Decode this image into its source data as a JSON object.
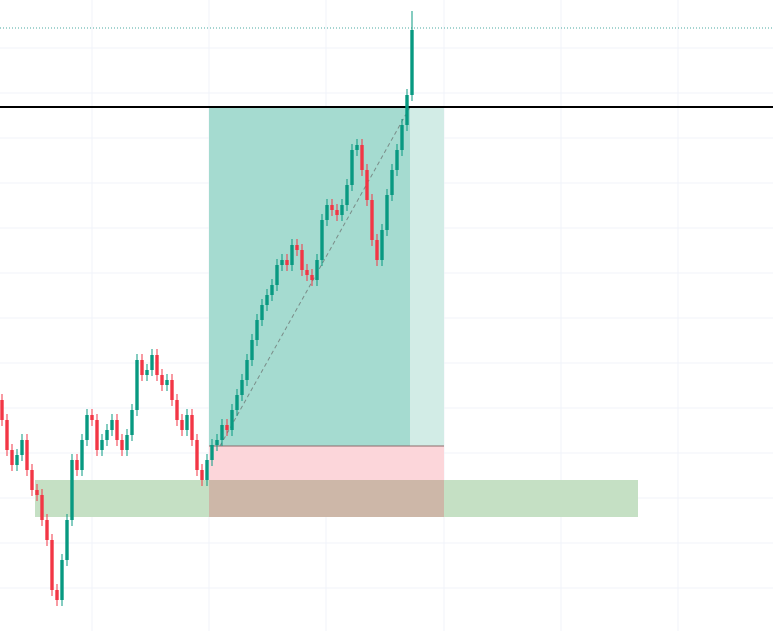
{
  "chart_data": {
    "type": "candlestick",
    "up_color": "#089981",
    "down_color": "#f23645",
    "ylim": [
      0,
      631
    ],
    "open": [
      231,
      211,
      181,
      166,
      176,
      191,
      161,
      141,
      136,
      111,
      91,
      41,
      31,
      71,
      111,
      171,
      161,
      191,
      216,
      211,
      181,
      191,
      201,
      211,
      191,
      181,
      196,
      221,
      271,
      256,
      261,
      276,
      256,
      246,
      251,
      231,
      211,
      201,
      216,
      191,
      161,
      151,
      171,
      186,
      191,
      206,
      201,
      221,
      236,
      251,
      271,
      291,
      311,
      326,
      336,
      346,
      366,
      371,
      366,
      386,
      381,
      361,
      356,
      351,
      371,
      411,
      426,
      421,
      416,
      426,
      446,
      481,
      486,
      461,
      431,
      391,
      371,
      401,
      436,
      461,
      481,
      506,
      536
    ],
    "high": [
      237,
      217,
      187,
      182,
      197,
      197,
      167,
      147,
      142,
      117,
      97,
      47,
      77,
      117,
      177,
      177,
      197,
      222,
      222,
      217,
      197,
      207,
      217,
      217,
      197,
      202,
      227,
      277,
      277,
      267,
      282,
      282,
      262,
      257,
      257,
      237,
      217,
      222,
      222,
      197,
      167,
      177,
      192,
      197,
      212,
      212,
      227,
      242,
      257,
      277,
      297,
      317,
      332,
      342,
      352,
      372,
      377,
      377,
      392,
      392,
      387,
      367,
      362,
      377,
      417,
      432,
      432,
      427,
      432,
      452,
      487,
      492,
      492,
      467,
      437,
      397,
      407,
      442,
      467,
      487,
      512,
      542,
      620
    ],
    "low": [
      205,
      175,
      160,
      160,
      170,
      155,
      135,
      130,
      105,
      85,
      35,
      25,
      25,
      65,
      105,
      155,
      155,
      185,
      205,
      175,
      175,
      185,
      195,
      185,
      175,
      175,
      190,
      215,
      250,
      250,
      255,
      250,
      240,
      240,
      225,
      205,
      195,
      195,
      185,
      155,
      145,
      145,
      165,
      180,
      185,
      195,
      195,
      215,
      230,
      245,
      265,
      285,
      305,
      320,
      330,
      340,
      360,
      360,
      360,
      375,
      355,
      350,
      345,
      345,
      365,
      405,
      415,
      410,
      410,
      420,
      440,
      475,
      455,
      425,
      385,
      365,
      365,
      395,
      430,
      455,
      475,
      500,
      530
    ],
    "close": [
      211,
      181,
      166,
      176,
      191,
      161,
      141,
      136,
      111,
      91,
      41,
      31,
      71,
      111,
      171,
      161,
      191,
      216,
      211,
      181,
      191,
      201,
      211,
      191,
      181,
      196,
      221,
      271,
      256,
      261,
      276,
      256,
      246,
      251,
      231,
      211,
      201,
      216,
      191,
      161,
      151,
      171,
      186,
      191,
      206,
      201,
      221,
      236,
      251,
      271,
      291,
      311,
      326,
      336,
      346,
      366,
      371,
      366,
      386,
      381,
      361,
      356,
      351,
      371,
      411,
      426,
      421,
      416,
      426,
      446,
      481,
      486,
      461,
      431,
      391,
      371,
      401,
      436,
      461,
      481,
      506,
      536,
      601
    ]
  }
}
